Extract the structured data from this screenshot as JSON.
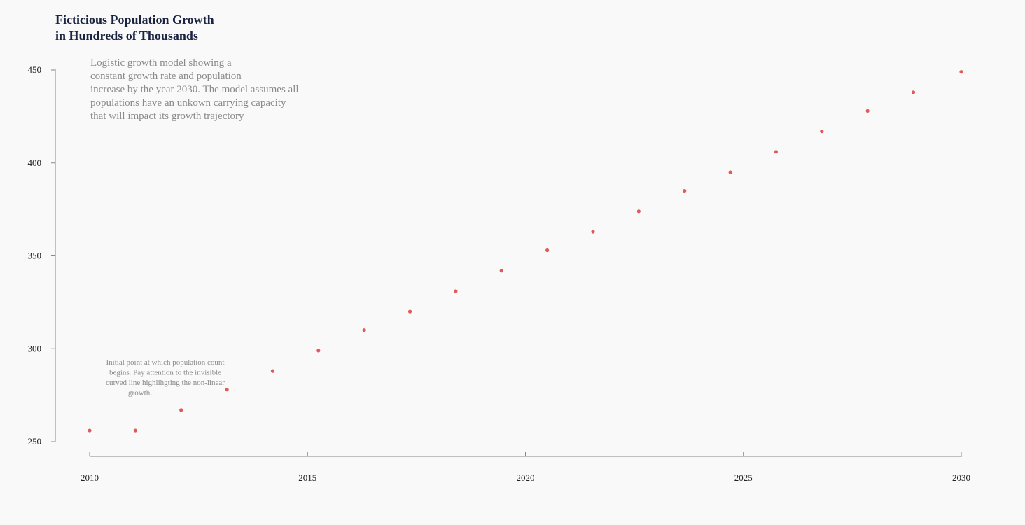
{
  "chart_data": {
    "type": "scatter",
    "title_lines": [
      "Ficticious Population Growth",
      "in Hundreds of Thousands"
    ],
    "description_lines": [
      "Logistic growth model showing a",
      "constant growth rate and population",
      "increase by the year 2030. The model assumes all",
      "populations have an unkown carrying capacity",
      "that will impact its growth trajectory"
    ],
    "annotation_lines": [
      "Initial point at which population count",
      "begins. Pay attention to the invisible",
      "curved line highlihgting the non-linear",
      "growth."
    ],
    "xlabel": "",
    "ylabel": "",
    "xlim": [
      2010,
      2030
    ],
    "ylim": [
      250,
      450
    ],
    "x_ticks": [
      2010,
      2015,
      2020,
      2025,
      2030
    ],
    "y_ticks": [
      250,
      300,
      350,
      400,
      450
    ],
    "grid": false,
    "point_color": "#e05a5a",
    "x": [
      2010.0,
      2011.05,
      2012.1,
      2013.15,
      2014.2,
      2015.25,
      2016.3,
      2017.35,
      2018.4,
      2019.45,
      2020.5,
      2021.55,
      2022.6,
      2023.65,
      2024.7,
      2025.75,
      2026.8,
      2027.85,
      2028.9,
      2030.0
    ],
    "y": [
      256,
      256,
      267,
      278,
      288,
      299,
      310,
      320,
      331,
      342,
      353,
      363,
      374,
      385,
      395,
      406,
      417,
      428,
      438,
      449
    ]
  }
}
